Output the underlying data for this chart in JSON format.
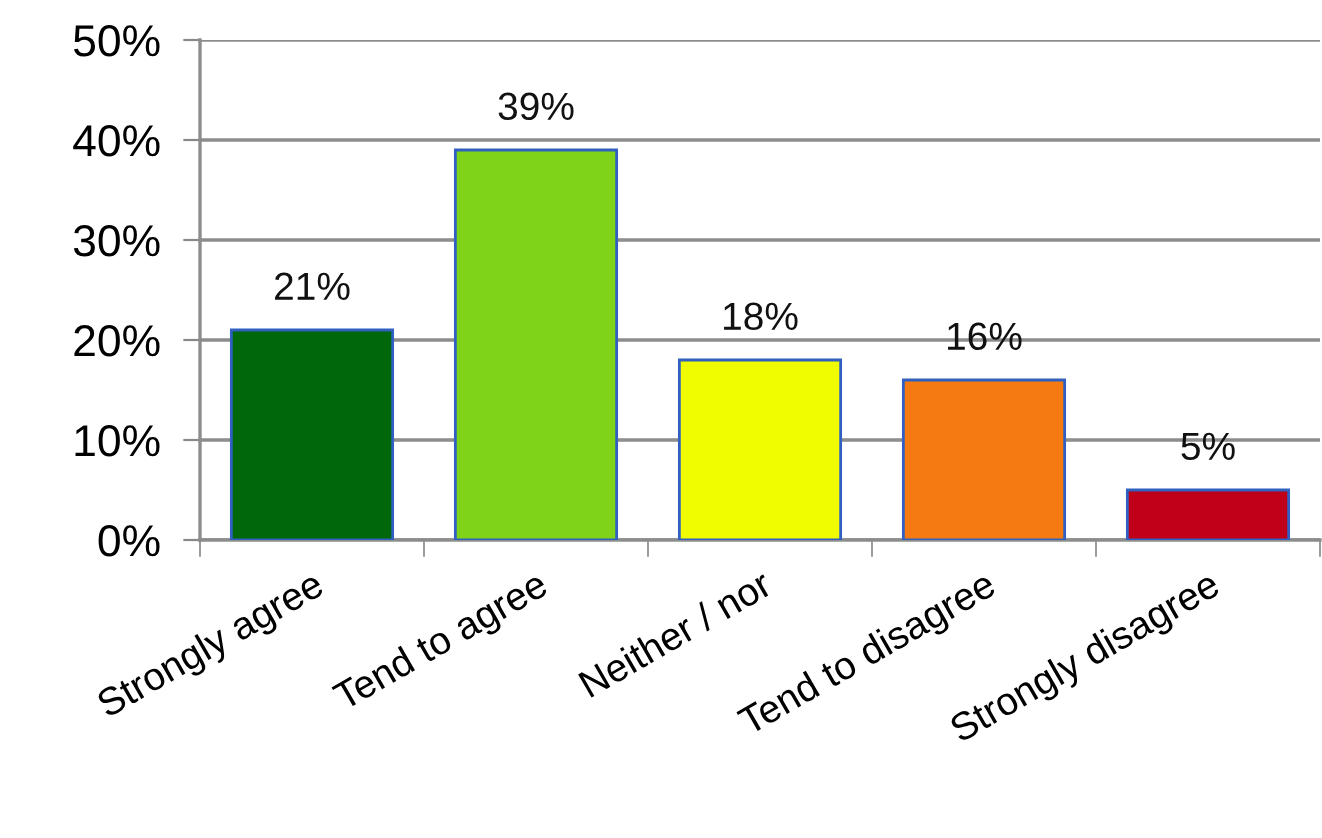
{
  "chart_data": {
    "type": "bar",
    "categories": [
      "Strongly agree",
      "Tend to agree",
      "Neither / nor",
      "Tend to disagree",
      "Strongly disagree"
    ],
    "values": [
      21,
      39,
      18,
      16,
      5
    ],
    "colors": [
      "#00680a",
      "#7fd41a",
      "#f0fc00",
      "#f57a12",
      "#c00018"
    ],
    "value_labels": [
      "21%",
      "39%",
      "18%",
      "16%",
      "5%"
    ],
    "ylim": [
      0,
      50
    ],
    "yticks": [
      {
        "value": 0,
        "label": "0%"
      },
      {
        "value": 10,
        "label": "10%"
      },
      {
        "value": 20,
        "label": "20%"
      },
      {
        "value": 30,
        "label": "30%"
      },
      {
        "value": 40,
        "label": "40%"
      },
      {
        "value": 50,
        "label": "50%"
      }
    ],
    "grid": "y",
    "legend": false
  }
}
